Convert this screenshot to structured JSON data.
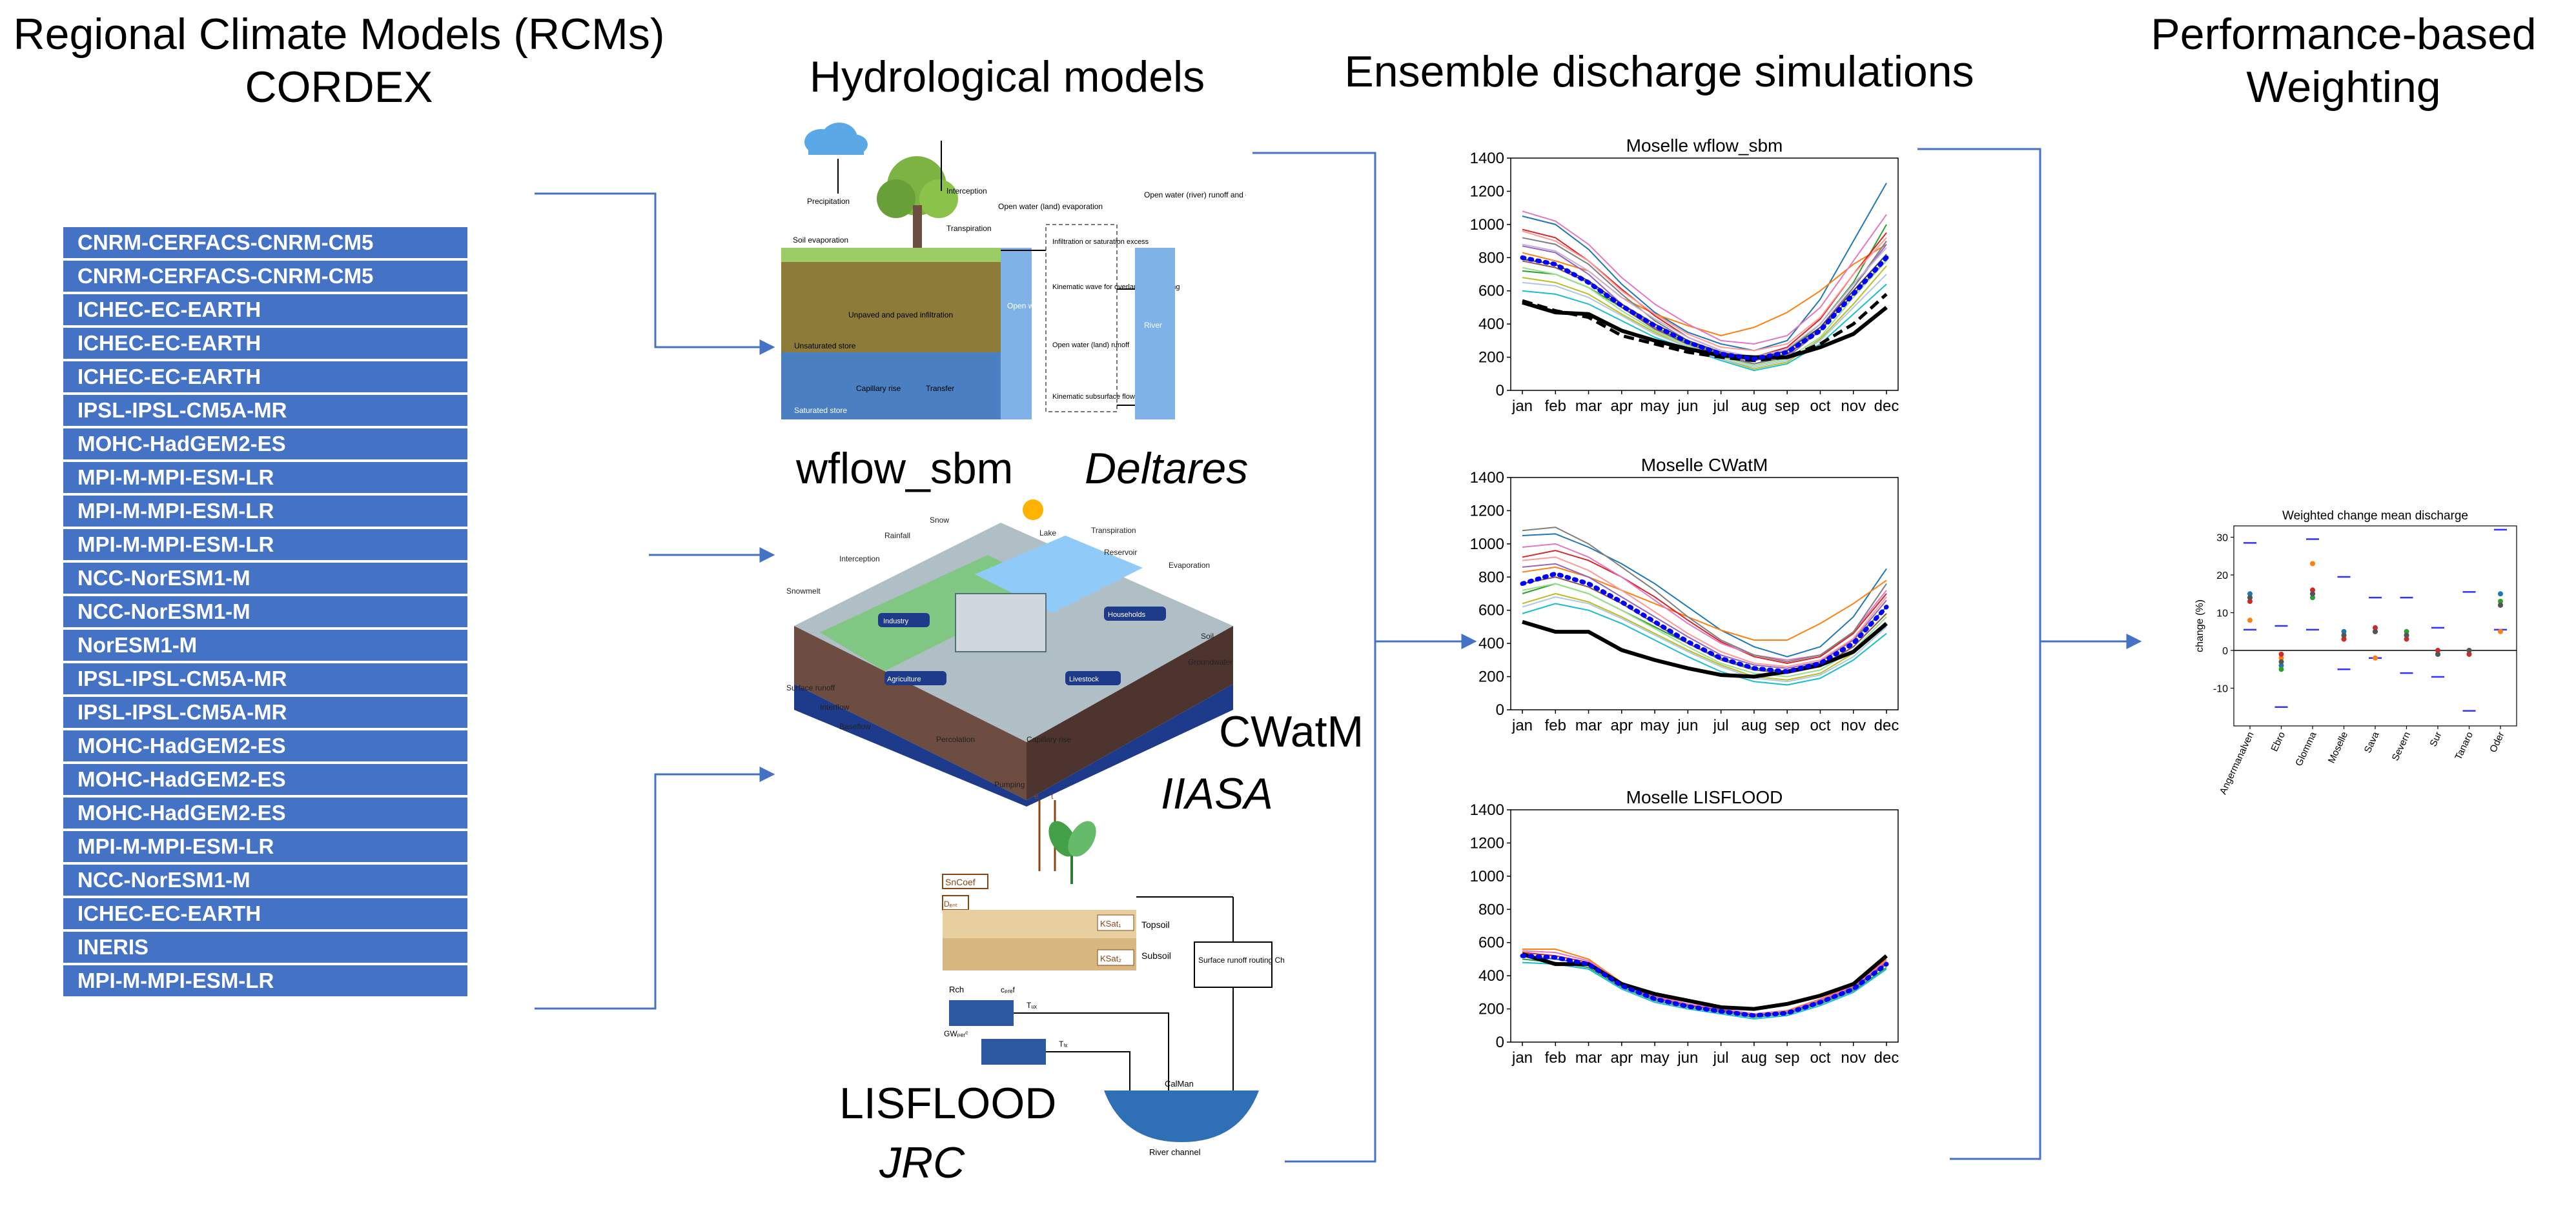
{
  "headers": {
    "rcm_line1": "Regional Climate Models (RCMs)",
    "rcm_line2": "CORDEX",
    "hydro": "Hydrological models",
    "ensemble": "Ensemble discharge simulations",
    "weight_line1": "Performance-based",
    "weight_line2": "Weighting"
  },
  "rcm_models": [
    "CNRM-CERFACS-CNRM-CM5",
    "CNRM-CERFACS-CNRM-CM5",
    "ICHEC-EC-EARTH",
    "ICHEC-EC-EARTH",
    "ICHEC-EC-EARTH",
    "IPSL-IPSL-CM5A-MR",
    "MOHC-HadGEM2-ES",
    "MPI-M-MPI-ESM-LR",
    "MPI-M-MPI-ESM-LR",
    "MPI-M-MPI-ESM-LR",
    "NCC-NorESM1-M",
    "NCC-NorESM1-M",
    "NorESM1-M",
    "IPSL-IPSL-CM5A-MR",
    "IPSL-IPSL-CM5A-MR",
    "MOHC-HadGEM2-ES",
    "MOHC-HadGEM2-ES",
    "MOHC-HadGEM2-ES",
    "MPI-M-MPI-ESM-LR",
    "NCC-NorESM1-M",
    "ICHEC-EC-EARTH",
    "INERIS",
    "MPI-M-MPI-ESM-LR"
  ],
  "hydro_models": {
    "wflow": {
      "name": "wflow_sbm",
      "org": "Deltares",
      "labels": {
        "precip": "Precipitation",
        "intercept": "Interception",
        "soil_evap": "Soil evaporation",
        "transp": "Transpiration",
        "openwater_land": "Open water (land) evaporation",
        "openwater_river": "Open water (river) runoff and evaporation",
        "infil_excess": "Infiltration or saturation excess",
        "kinematic_overland": "Kinematic wave for overland flow routing",
        "unpaved": "Unpaved and paved infiltration",
        "unsat": "Unsaturated store",
        "capillary": "Capillary rise",
        "transfer": "Transfer",
        "saturated": "Saturated store",
        "open_water": "Open water",
        "openwater_runoff": "Open water (land) runoff",
        "kinematic_sub": "Kinematic subsurface flow",
        "river": "River"
      }
    },
    "cwatm": {
      "name": "CWatM",
      "org": "IIASA",
      "labels": {
        "snow": "Snow",
        "lake": "Lake",
        "rain": "Rainfall",
        "transp": "Transpiration",
        "evap": "Evaporation",
        "reservoir": "Reservoir",
        "intercept": "Interception",
        "snowmelt": "Snowmelt",
        "soil": "Soil",
        "groundwater": "Groundwater",
        "surface_runoff": "Surface runoff",
        "interflow": "Interflow",
        "baseflow": "Baseflow",
        "percolation": "Percolation",
        "capillary": "Capillary rise",
        "pumping": "Pumping",
        "industry": "Industry",
        "households": "Households",
        "agriculture": "Agriculture",
        "livestock": "Livestock"
      }
    },
    "lisflood": {
      "name": "LISFLOOD",
      "org": "JRC",
      "labels": {
        "sncoef": "SnCoef",
        "dint": "Dₑₙₜ",
        "topsoil": "Topsoil",
        "subsoil": "Subsoil",
        "ksat1": "KSat₁",
        "ksat2": "KSat₂",
        "surface_routing": "Surface runoff routing Chanₙ",
        "rch": "Rch",
        "gwperc": "GWₚₑᵣᶜ",
        "cpref": "cₚᵣₑf",
        "tuz": "Tᵤₓ",
        "tlz": "Tₗₓ",
        "calman": "CalMan",
        "river": "River channel",
        "e": "e",
        "t": "t"
      }
    }
  },
  "chart_data": [
    {
      "type": "line",
      "title": "Moselle wflow_sbm",
      "categories": [
        "jan",
        "feb",
        "mar",
        "apr",
        "may",
        "jun",
        "jul",
        "aug",
        "sep",
        "oct",
        "nov",
        "dec"
      ],
      "ylim": [
        0,
        1400
      ],
      "yticks": [
        0,
        200,
        400,
        600,
        800,
        1000,
        1200,
        1400
      ],
      "grid": false,
      "series": [
        {
          "color": "#1f77b4",
          "values": [
            1050,
            1000,
            850,
            640,
            470,
            350,
            280,
            240,
            300,
            550,
            900,
            1250
          ]
        },
        {
          "color": "#ff7f0e",
          "values": [
            830,
            780,
            720,
            560,
            460,
            390,
            330,
            380,
            470,
            600,
            760,
            880
          ]
        },
        {
          "color": "#2ca02c",
          "values": [
            720,
            700,
            620,
            500,
            380,
            290,
            220,
            180,
            240,
            400,
            650,
            1000
          ]
        },
        {
          "color": "#d62728",
          "values": [
            970,
            920,
            780,
            610,
            450,
            320,
            240,
            200,
            260,
            430,
            700,
            950
          ]
        },
        {
          "color": "#9467bd",
          "values": [
            870,
            830,
            700,
            520,
            380,
            270,
            200,
            160,
            210,
            380,
            620,
            880
          ]
        },
        {
          "color": "#8c564b",
          "values": [
            780,
            740,
            650,
            500,
            370,
            280,
            210,
            180,
            220,
            360,
            580,
            780
          ]
        },
        {
          "color": "#e377c2",
          "values": [
            1080,
            1020,
            880,
            680,
            520,
            400,
            300,
            280,
            330,
            500,
            780,
            1060
          ]
        },
        {
          "color": "#7f7f7f",
          "values": [
            920,
            880,
            760,
            580,
            420,
            300,
            220,
            160,
            200,
            360,
            620,
            900
          ]
        },
        {
          "color": "#bcbd22",
          "values": [
            680,
            650,
            580,
            460,
            350,
            260,
            190,
            130,
            170,
            310,
            520,
            750
          ]
        },
        {
          "color": "#17becf",
          "values": [
            600,
            580,
            520,
            420,
            320,
            250,
            180,
            120,
            160,
            280,
            460,
            640
          ]
        },
        {
          "color": "#ff9896",
          "values": [
            960,
            900,
            780,
            600,
            460,
            340,
            260,
            240,
            280,
            440,
            700,
            920
          ]
        },
        {
          "color": "#98df8a",
          "values": [
            740,
            700,
            620,
            480,
            360,
            270,
            200,
            150,
            190,
            320,
            560,
            780
          ]
        },
        {
          "color": "#aec7e8",
          "values": [
            650,
            630,
            560,
            450,
            340,
            260,
            190,
            140,
            180,
            300,
            500,
            700
          ]
        },
        {
          "color": "#c5b0d5",
          "values": [
            880,
            840,
            720,
            560,
            430,
            320,
            240,
            200,
            250,
            400,
            640,
            860
          ]
        },
        {
          "color": "#444444",
          "values": [
            790,
            760,
            660,
            520,
            400,
            300,
            230,
            190,
            240,
            380,
            600,
            820
          ]
        }
      ],
      "ensemble_mean": {
        "color": "#0000ff",
        "style": "dotted",
        "values": [
          800,
          760,
          650,
          510,
          390,
          290,
          220,
          190,
          230,
          360,
          580,
          800
        ]
      },
      "observed": {
        "color": "#000000",
        "values": [
          530,
          470,
          460,
          360,
          300,
          250,
          210,
          200,
          200,
          260,
          340,
          500
        ]
      },
      "simulated_dashed": {
        "color": "#000000",
        "style": "dashed",
        "values": [
          540,
          480,
          440,
          330,
          280,
          230,
          200,
          180,
          200,
          280,
          400,
          580
        ]
      }
    },
    {
      "type": "line",
      "title": "Moselle CWatM",
      "categories": [
        "jan",
        "feb",
        "mar",
        "apr",
        "may",
        "jun",
        "jul",
        "aug",
        "sep",
        "oct",
        "nov",
        "dec"
      ],
      "ylim": [
        0,
        1400
      ],
      "yticks": [
        0,
        200,
        400,
        600,
        800,
        1000,
        1200,
        1400
      ],
      "grid": false,
      "series": [
        {
          "color": "#1f77b4",
          "values": [
            1050,
            1060,
            980,
            880,
            760,
            620,
            480,
            380,
            320,
            380,
            560,
            850
          ]
        },
        {
          "color": "#ff7f0e",
          "values": [
            830,
            860,
            800,
            720,
            640,
            560,
            480,
            420,
            420,
            520,
            640,
            780
          ]
        },
        {
          "color": "#2ca02c",
          "values": [
            700,
            760,
            700,
            600,
            500,
            400,
            310,
            250,
            230,
            290,
            420,
            620
          ]
        },
        {
          "color": "#d62728",
          "values": [
            920,
            960,
            900,
            800,
            680,
            540,
            410,
            320,
            280,
            320,
            460,
            700
          ]
        },
        {
          "color": "#9467bd",
          "values": [
            860,
            880,
            800,
            680,
            560,
            440,
            330,
            270,
            250,
            290,
            420,
            660
          ]
        },
        {
          "color": "#8c564b",
          "values": [
            760,
            800,
            740,
            640,
            520,
            400,
            300,
            240,
            220,
            260,
            380,
            580
          ]
        },
        {
          "color": "#e377c2",
          "values": [
            980,
            1000,
            920,
            800,
            660,
            520,
            400,
            330,
            300,
            330,
            470,
            720
          ]
        },
        {
          "color": "#7f7f7f",
          "values": [
            1080,
            1100,
            1000,
            860,
            720,
            560,
            420,
            330,
            290,
            330,
            470,
            760
          ]
        },
        {
          "color": "#bcbd22",
          "values": [
            640,
            700,
            650,
            560,
            460,
            360,
            270,
            200,
            180,
            220,
            340,
            520
          ]
        },
        {
          "color": "#17becf",
          "values": [
            580,
            640,
            600,
            520,
            420,
            320,
            230,
            170,
            150,
            190,
            300,
            460
          ]
        },
        {
          "color": "#ff9896",
          "values": [
            900,
            920,
            840,
            720,
            590,
            460,
            350,
            280,
            260,
            300,
            430,
            680
          ]
        },
        {
          "color": "#98df8a",
          "values": [
            720,
            760,
            700,
            600,
            490,
            380,
            280,
            220,
            200,
            240,
            360,
            560
          ]
        },
        {
          "color": "#aec7e8",
          "values": [
            620,
            680,
            640,
            550,
            450,
            350,
            260,
            190,
            170,
            210,
            320,
            500
          ]
        }
      ],
      "ensemble_mean": {
        "color": "#0000ff",
        "style": "dotted",
        "values": [
          760,
          820,
          760,
          650,
          530,
          410,
          310,
          250,
          230,
          280,
          400,
          620
        ]
      },
      "observed": {
        "color": "#000000",
        "values": [
          530,
          470,
          470,
          360,
          300,
          250,
          210,
          200,
          230,
          270,
          350,
          520
        ]
      }
    },
    {
      "type": "line",
      "title": "Moselle LISFLOOD",
      "categories": [
        "jan",
        "feb",
        "mar",
        "apr",
        "may",
        "jun",
        "jul",
        "aug",
        "sep",
        "oct",
        "nov",
        "dec"
      ],
      "ylim": [
        0,
        1400
      ],
      "yticks": [
        0,
        200,
        400,
        600,
        800,
        1000,
        1200,
        1400
      ],
      "grid": false,
      "series": [
        {
          "color": "#1f77b4",
          "values": [
            520,
            500,
            470,
            340,
            260,
            220,
            190,
            160,
            180,
            240,
            320,
            470
          ]
        },
        {
          "color": "#ff7f0e",
          "values": [
            560,
            560,
            500,
            360,
            280,
            230,
            200,
            170,
            190,
            260,
            340,
            500
          ]
        },
        {
          "color": "#2ca02c",
          "values": [
            500,
            480,
            450,
            330,
            250,
            210,
            180,
            150,
            170,
            230,
            310,
            450
          ]
        },
        {
          "color": "#d62728",
          "values": [
            540,
            520,
            480,
            350,
            270,
            225,
            195,
            165,
            185,
            250,
            330,
            480
          ]
        },
        {
          "color": "#17becf",
          "values": [
            480,
            470,
            440,
            320,
            240,
            200,
            170,
            140,
            160,
            220,
            300,
            440
          ]
        },
        {
          "color": "#e377c2",
          "values": [
            550,
            540,
            490,
            355,
            275,
            230,
            200,
            170,
            185,
            255,
            335,
            490
          ]
        }
      ],
      "ensemble_mean": {
        "color": "#0000ff",
        "style": "dotted",
        "values": [
          520,
          510,
          470,
          340,
          260,
          215,
          185,
          160,
          175,
          240,
          320,
          470
        ]
      },
      "observed": {
        "color": "#000000",
        "values": [
          530,
          470,
          470,
          350,
          290,
          250,
          210,
          200,
          230,
          280,
          350,
          520
        ]
      }
    },
    {
      "type": "scatter",
      "title": "Weighted change mean discharge",
      "ylabel": "change (%)",
      "categories": [
        "Angermanalven",
        "Ebro",
        "Glomma",
        "Moselle",
        "Sava",
        "Severn",
        "Sur",
        "Tanaro",
        "Oder"
      ],
      "ylim": [
        -20,
        33
      ],
      "yticks": [
        -10,
        0,
        10,
        20,
        30
      ],
      "zero_line": true,
      "range_upper": [
        28.5,
        6.5,
        29.5,
        19.5,
        14,
        14,
        6,
        15.5,
        32
      ],
      "range_lower": [
        5.5,
        -15,
        5.5,
        -5,
        -2,
        -6,
        -7,
        -16,
        5.5
      ],
      "points": [
        {
          "color": "#1f77b4",
          "values": [
            15,
            -4,
            15,
            5,
            5,
            4,
            -1,
            -1,
            15
          ]
        },
        {
          "color": "#ff7f0e",
          "values": [
            8,
            -2,
            23,
            3,
            -2,
            4,
            0,
            0,
            5
          ]
        },
        {
          "color": "#2ca02c",
          "values": [
            14,
            -5,
            14,
            4,
            5,
            5,
            -1,
            0,
            13
          ]
        },
        {
          "color": "#d62728",
          "values": [
            13,
            -1,
            16,
            3,
            6,
            3,
            0,
            -1,
            12
          ]
        },
        {
          "color": "#555555",
          "values": [
            14,
            -3,
            15,
            4,
            5,
            4,
            -1,
            0,
            12
          ]
        }
      ]
    }
  ]
}
